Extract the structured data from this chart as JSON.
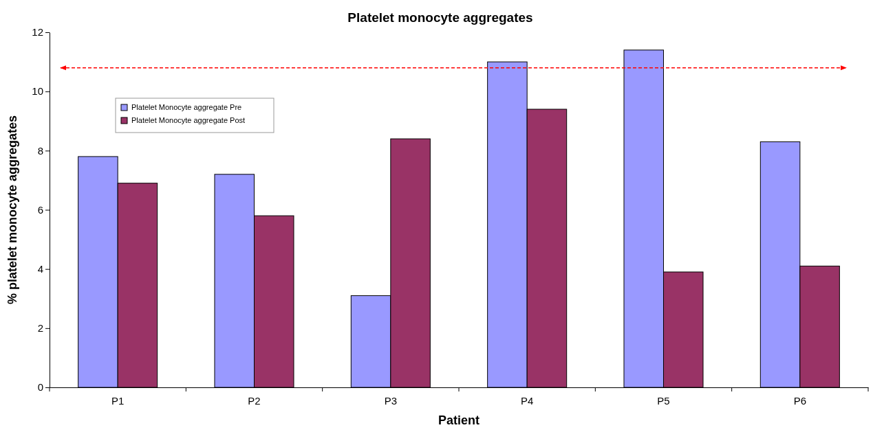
{
  "chart_data": {
    "type": "bar",
    "title": "Platelet monocyte aggregates",
    "xlabel": "Patient",
    "ylabel": "% platelet monocyte aggregates",
    "categories": [
      "P1",
      "P2",
      "P3",
      "P4",
      "P5",
      "P6"
    ],
    "series": [
      {
        "name": "Platelet Monocyte aggregate Pre",
        "color": "#9999ff",
        "values": [
          7.8,
          7.2,
          3.1,
          11.0,
          11.4,
          8.3
        ]
      },
      {
        "name": "Platelet Monocyte aggregate Post",
        "color": "#993366",
        "values": [
          6.9,
          5.8,
          8.4,
          9.4,
          3.9,
          4.1
        ]
      }
    ],
    "ylim": [
      0,
      12
    ],
    "yticks": [
      0,
      2,
      4,
      6,
      8,
      10,
      12
    ],
    "grid": false,
    "legend": "top left",
    "ref_lines": [
      {
        "axis": "y",
        "value": 10.8,
        "color": "#ff0000",
        "line_style": "dashed"
      }
    ]
  }
}
